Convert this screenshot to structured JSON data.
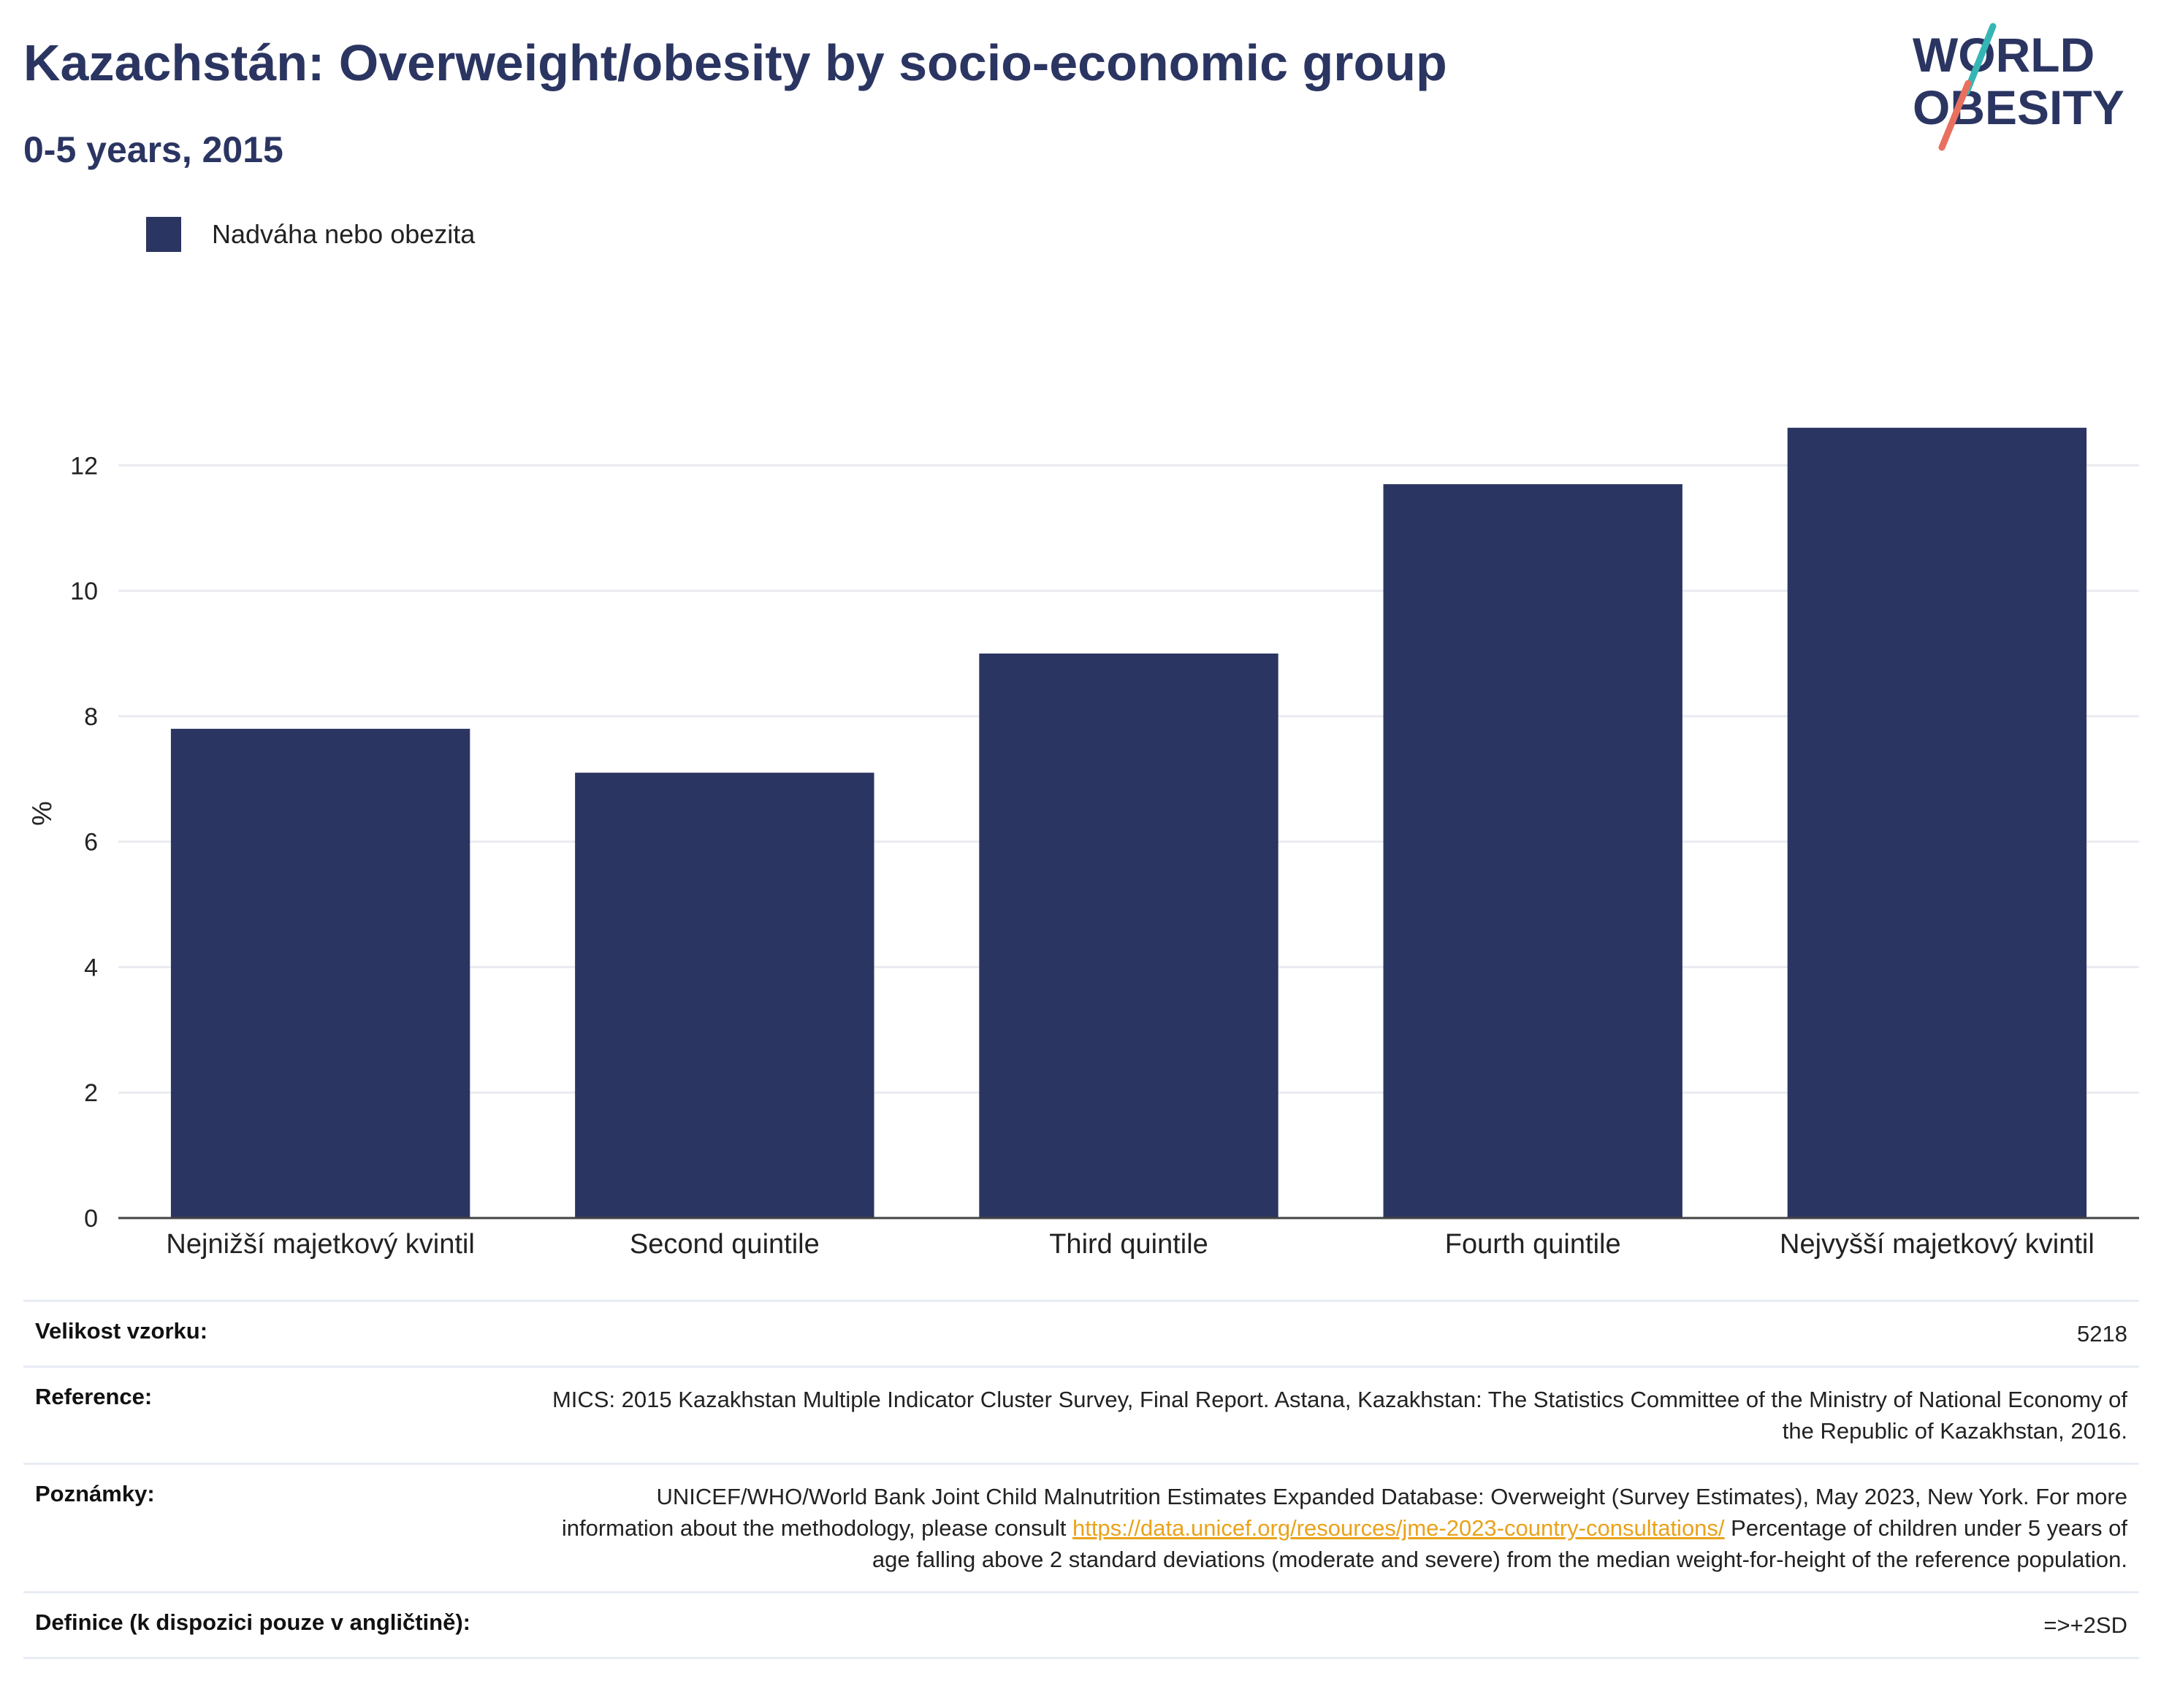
{
  "header": {
    "title": "Kazachstán: Overweight/obesity by socio-economic group",
    "subtitle": "0-5 years, 2015"
  },
  "logo": {
    "line1": "WORLD",
    "line2": "OBESITY",
    "colors": {
      "text": "#2b3562",
      "teal": "#35b6b4",
      "coral": "#e8705f"
    }
  },
  "legend": {
    "label": "Nadváha nebo obezita",
    "color": "#2b3562"
  },
  "chart_data": {
    "type": "bar",
    "categories": [
      "Nejnižší majetkový kvintil",
      "Second quintile",
      "Third quintile",
      "Fourth quintile",
      "Nejvyšší majetkový kvintil"
    ],
    "series": [
      {
        "name": "Nadváha nebo obezita",
        "values": [
          7.8,
          7.1,
          9.0,
          11.7,
          12.6
        ],
        "color": "#2b3562"
      }
    ],
    "ylabel": "%",
    "ylim": [
      0,
      12.9
    ],
    "yticks": [
      0,
      2,
      4,
      6,
      8,
      10,
      12
    ],
    "grid": true,
    "legend_position": "top-left"
  },
  "meta": {
    "sample_label": "Velikost vzorku:",
    "sample_value": "5218",
    "reference_label": "Reference:",
    "reference_value": "MICS: 2015 Kazakhstan Multiple Indicator Cluster Survey, Final Report. Astana, Kazakhstan: The Statistics Committee of the Ministry of National Economy of the Republic of Kazakhstan, 2016.",
    "notes_label": "Poznámky:",
    "notes_text_before": "UNICEF/WHO/World Bank Joint Child Malnutrition Estimates Expanded Database: Overweight (Survey Estimates), May 2023, New York. For more information about the methodology, please consult ",
    "notes_link": "https://data.unicef.org/resources/jme-2023-country-consultations/",
    "notes_text_after": " Percentage of children under 5 years of age falling above 2 standard deviations (moderate and severe) from the median weight-for-height of the reference population.",
    "definition_label": "Definice (k dispozici pouze v angličtině):",
    "definition_value": "=>+2SD"
  }
}
